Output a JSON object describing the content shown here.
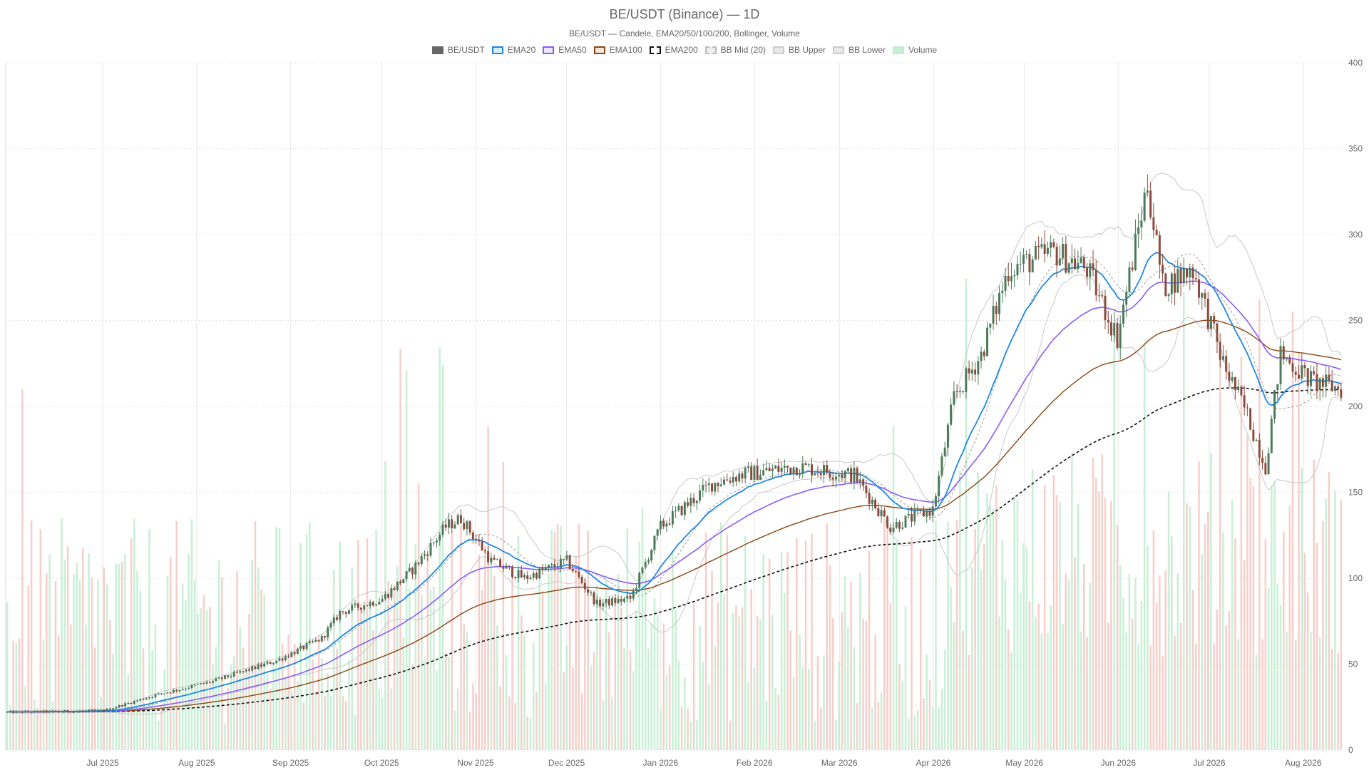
{
  "chart_data": {
    "type": "candlestick",
    "title": "BE/USDT (Binance) — 1D",
    "subtitle": "BE/USDT — Candele, EMA20/50/100/200, Bollinger, Volume",
    "legend": [
      {
        "name": "BE/USDT",
        "color": "#666666",
        "fill": "#666666",
        "dash": false
      },
      {
        "name": "EMA20",
        "color": "#1e88e5",
        "fill": "#dbeaf8",
        "dash": false
      },
      {
        "name": "EMA50",
        "color": "#8b5cf6",
        "fill": "#efe7fd",
        "dash": false
      },
      {
        "name": "EMA100",
        "color": "#8b4513",
        "fill": "#f3e6dd",
        "dash": false
      },
      {
        "name": "EMA200",
        "color": "#111111",
        "fill": "#ffffff",
        "dash": true
      },
      {
        "name": "BB Mid (20)",
        "color": "#bbbbbb",
        "fill": "#eeeeee",
        "dash": true
      },
      {
        "name": "BB Upper",
        "color": "#cccccc",
        "fill": "#e8e8e8",
        "dash": false
      },
      {
        "name": "BB Lower",
        "color": "#cccccc",
        "fill": "#e8e8e8",
        "dash": false
      },
      {
        "name": "Volume",
        "color": "#bfeccf",
        "fill": "#c8f0d6",
        "dash": false
      }
    ],
    "legend_position": "top-center",
    "x_tick_labels": [
      "Jul 2025",
      "Aug 2025",
      "Sep 2025",
      "Oct 2025",
      "Nov 2025",
      "Dec 2025",
      "Jan 2026",
      "Feb 2026",
      "Mar 2026",
      "Apr 2026",
      "May 2026",
      "Jun 2026",
      "Jul 2026",
      "Aug 2026"
    ],
    "x_range": [
      "2025-06-13",
      "2026-08-28"
    ],
    "y_ticks": [
      0,
      50,
      100,
      150,
      200,
      250,
      300,
      350,
      400
    ],
    "ylim": [
      0,
      400
    ],
    "y_axis_side": "right",
    "grid": true,
    "colors": {
      "up": "#4a7a5a",
      "down": "#8b4a3c",
      "volume_up": "#bfeccf",
      "volume_down": "#f5c7c2"
    },
    "anchors": [
      {
        "date": "2025-06-13",
        "close": 22
      },
      {
        "date": "2025-07-15",
        "close": 23
      },
      {
        "date": "2025-08-01",
        "close": 32
      },
      {
        "date": "2025-08-20",
        "close": 40
      },
      {
        "date": "2025-09-10",
        "close": 52
      },
      {
        "date": "2025-09-25",
        "close": 65
      },
      {
        "date": "2025-10-01",
        "close": 80
      },
      {
        "date": "2025-10-15",
        "close": 88
      },
      {
        "date": "2025-10-25",
        "close": 105
      },
      {
        "date": "2025-11-05",
        "close": 130
      },
      {
        "date": "2025-11-10",
        "close": 135
      },
      {
        "date": "2025-11-20",
        "close": 110
      },
      {
        "date": "2025-12-01",
        "close": 100
      },
      {
        "date": "2025-12-15",
        "close": 110
      },
      {
        "date": "2025-12-25",
        "close": 85
      },
      {
        "date": "2026-01-05",
        "close": 88
      },
      {
        "date": "2026-01-15",
        "close": 130
      },
      {
        "date": "2026-02-01",
        "close": 155
      },
      {
        "date": "2026-02-10",
        "close": 160
      },
      {
        "date": "2026-03-01",
        "close": 165
      },
      {
        "date": "2026-03-20",
        "close": 160
      },
      {
        "date": "2026-04-01",
        "close": 130
      },
      {
        "date": "2026-04-15",
        "close": 140
      },
      {
        "date": "2026-04-22",
        "close": 205
      },
      {
        "date": "2026-05-01",
        "close": 230
      },
      {
        "date": "2026-05-10",
        "close": 280
      },
      {
        "date": "2026-05-25",
        "close": 290
      },
      {
        "date": "2026-06-05",
        "close": 280
      },
      {
        "date": "2026-06-15",
        "close": 240
      },
      {
        "date": "2026-06-25",
        "close": 330
      },
      {
        "date": "2026-06-30",
        "close": 270
      },
      {
        "date": "2026-07-10",
        "close": 280
      },
      {
        "date": "2026-07-20",
        "close": 225
      },
      {
        "date": "2026-07-28",
        "close": 195
      },
      {
        "date": "2026-08-03",
        "close": 165
      },
      {
        "date": "2026-08-08",
        "close": 230
      },
      {
        "date": "2026-08-18",
        "close": 215
      },
      {
        "date": "2026-08-28",
        "close": 210
      }
    ]
  }
}
